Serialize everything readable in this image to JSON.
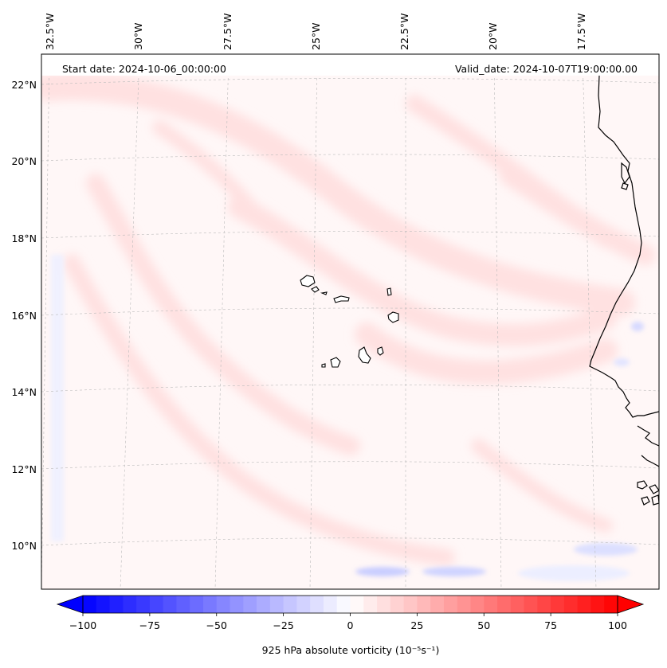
{
  "header": {
    "start_date": "Start date: 2024-10-06_00:00:00",
    "valid_date": "Valid_date: 2024-10-07T19:00:00.00"
  },
  "map": {
    "projection": "polar-stereographic section",
    "lon_labels": [
      "32.5°W",
      "30°W",
      "27.5°W",
      "25°W",
      "22.5°W",
      "20°W",
      "17.5°W"
    ],
    "lat_labels": [
      "22°N",
      "20°N",
      "18°N",
      "16°N",
      "14°N",
      "12°N",
      "10°N"
    ],
    "features": [
      "cape-verde-islands",
      "west-africa-coastline"
    ],
    "colors": {
      "coast": "#000000",
      "grid": "#bbbbbb",
      "positive": "#ff0000",
      "negative": "#0000ff"
    }
  },
  "colorbar": {
    "label": "925 hPa absolute vorticity (10⁻⁵s⁻¹)",
    "ticks": [
      "−100",
      "−75",
      "−50",
      "−25",
      "0",
      "25",
      "50",
      "75",
      "100"
    ],
    "min": -100,
    "max": 100,
    "levels": 41,
    "cmap": "bwr"
  },
  "chart_data": {
    "type": "heatmap",
    "variable": "925 hPa absolute vorticity",
    "units": "10^-5 s^-1",
    "range": [
      -100,
      100
    ],
    "extend": "both"
  }
}
